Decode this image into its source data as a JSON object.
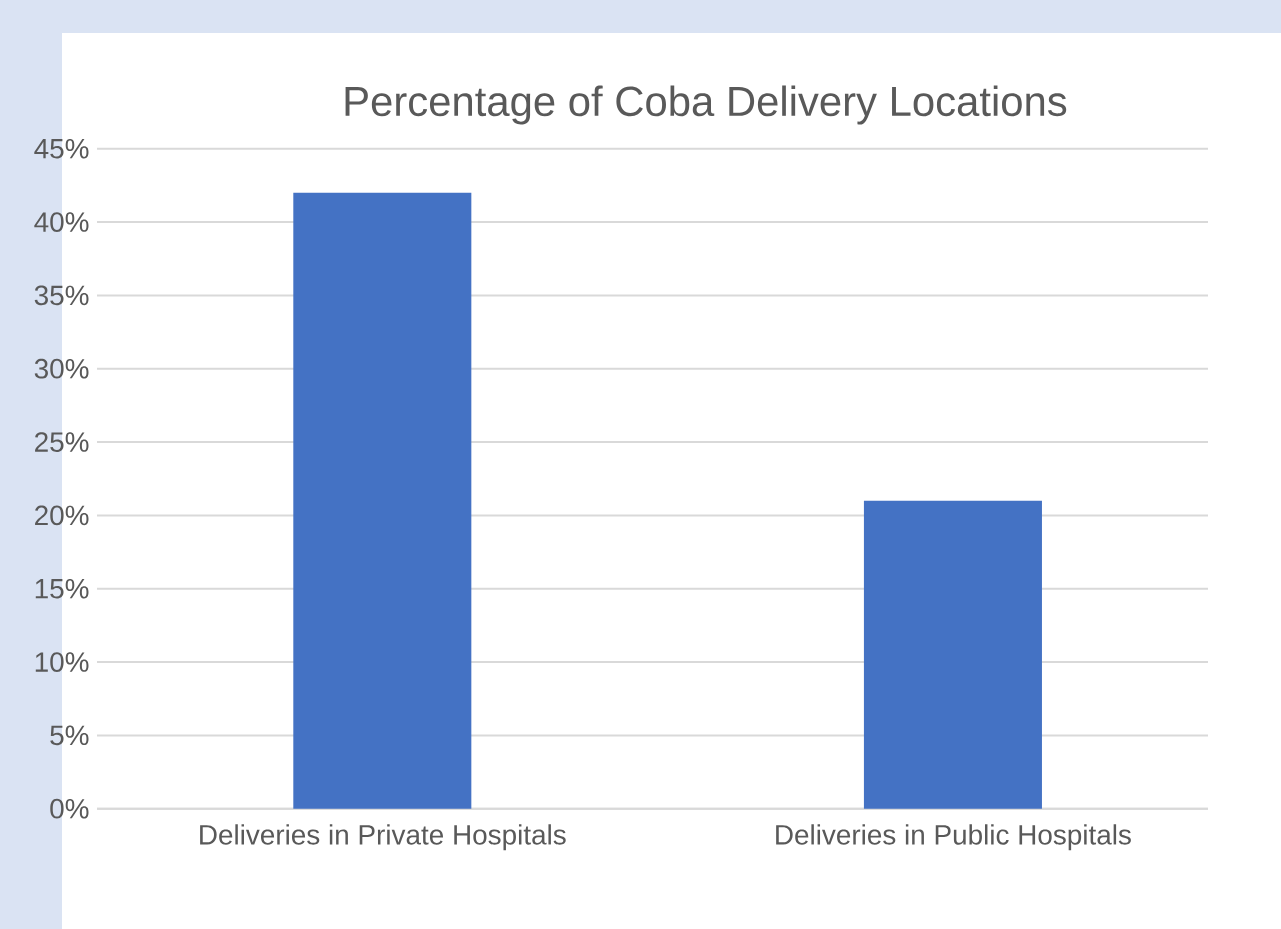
{
  "chart_data": {
    "type": "bar",
    "title": "Percentage of Coba Delivery Locations",
    "categories": [
      "Deliveries in Private Hospitals",
      "Deliveries in Public Hospitals"
    ],
    "values": [
      42,
      21
    ],
    "color": "#4472c4",
    "ylim": [
      0,
      45
    ],
    "yticks": [
      {
        "value": 0,
        "label": "0%"
      },
      {
        "value": 5,
        "label": "5%"
      },
      {
        "value": 10,
        "label": "10%"
      },
      {
        "value": 15,
        "label": "15%"
      },
      {
        "value": 20,
        "label": "20%"
      },
      {
        "value": 25,
        "label": "25%"
      },
      {
        "value": 30,
        "label": "30%"
      },
      {
        "value": 35,
        "label": "35%"
      },
      {
        "value": 40,
        "label": "40%"
      },
      {
        "value": 45,
        "label": "45%"
      }
    ],
    "grid": "y"
  }
}
